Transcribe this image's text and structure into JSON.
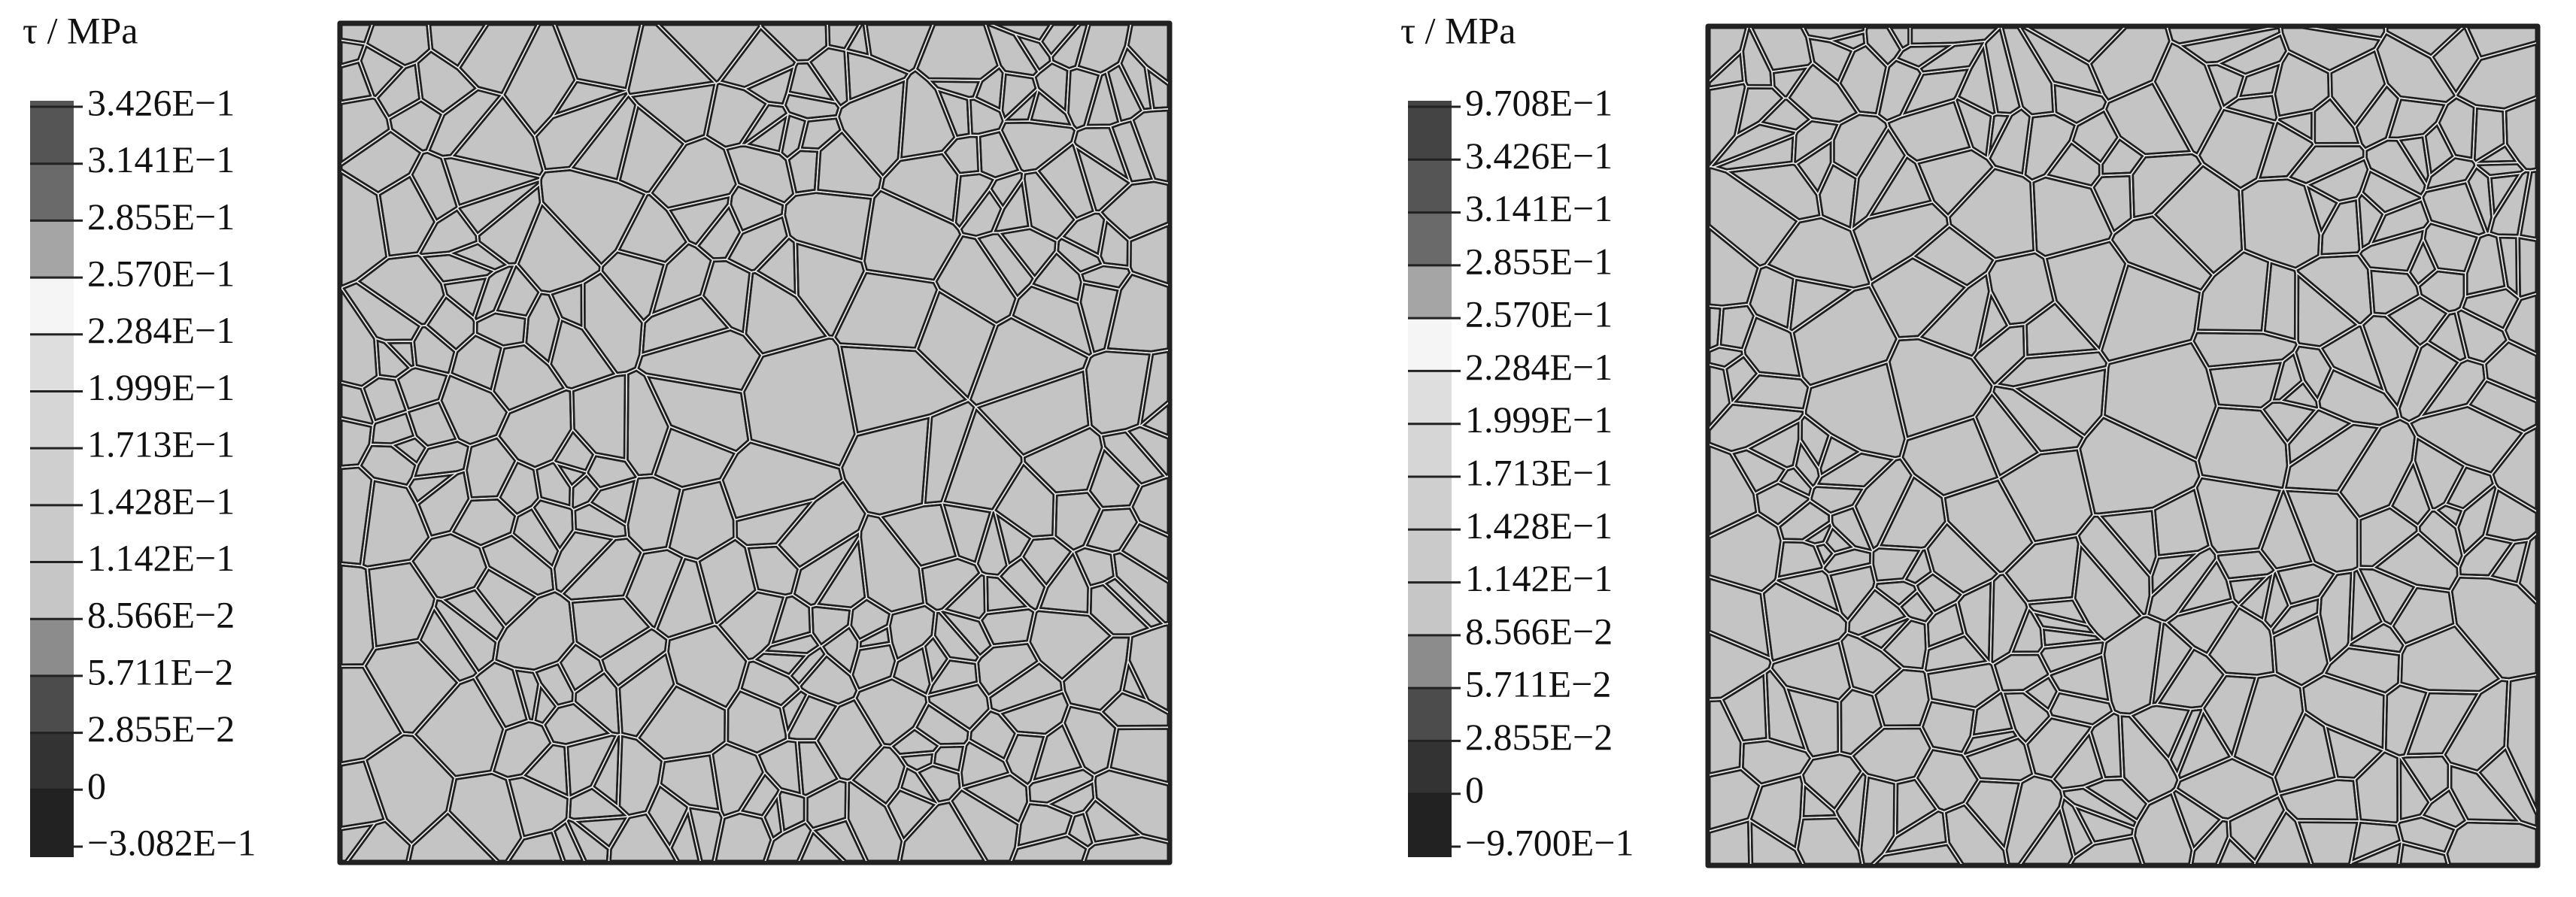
{
  "panels": [
    {
      "legend": {
        "unit": "τ / MPa",
        "labels": [
          "3.426E−1",
          "3.141E−1",
          "2.855E−1",
          "2.570E−1",
          "2.284E−1",
          "1.999E−1",
          "1.713E−1",
          "1.428E−1",
          "1.142E−1",
          "8.566E−2",
          "5.711E−2",
          "2.855E−2",
          "0",
          "−3.082E−1"
        ],
        "colors": [
          "#555555",
          "#6a6a6a",
          "#a5a5a5",
          "#f5f5f5",
          "#dedede",
          "#d6d6d6",
          "#cfcfcf",
          "#cacaca",
          "#c6c6c6",
          "#8c8c8c",
          "#4c4c4c",
          "#333333",
          "#222222"
        ]
      }
    },
    {
      "legend": {
        "unit": "τ / MPa",
        "labels": [
          "9.708E−1",
          "3.426E−1",
          "3.141E−1",
          "2.855E−1",
          "2.570E−1",
          "2.284E−1",
          "1.999E−1",
          "1.713E−1",
          "1.428E−1",
          "1.142E−1",
          "8.566E−2",
          "5.711E−2",
          "2.855E−2",
          "0",
          "−9.700E−1"
        ],
        "colors": [
          "#444444",
          "#555555",
          "#6a6a6a",
          "#a5a5a5",
          "#f5f5f5",
          "#dedede",
          "#d6d6d6",
          "#cfcfcf",
          "#cacaca",
          "#c6c6c6",
          "#8c8c8c",
          "#4c4c4c",
          "#333333",
          "#222222"
        ]
      }
    }
  ]
}
